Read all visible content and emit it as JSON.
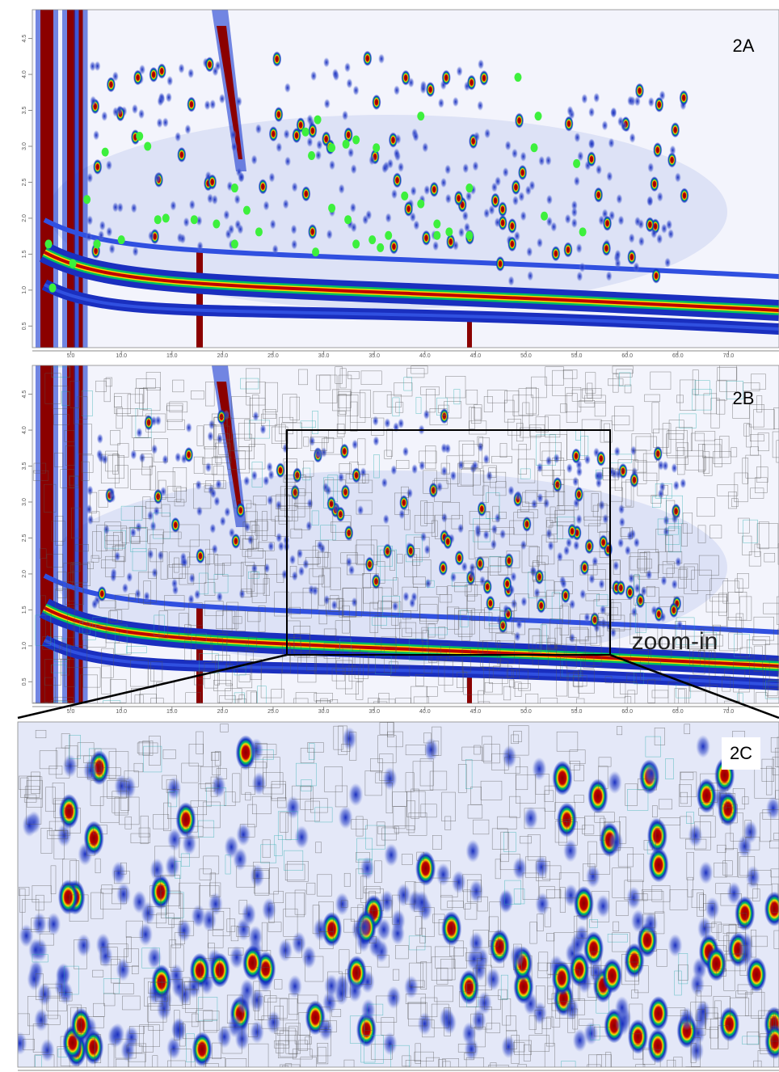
{
  "chart_data": [
    {
      "type": "scatter",
      "title": "2A",
      "xlim": [
        1.2,
        75
      ],
      "ylim": [
        0.2,
        4.9
      ],
      "xticks": [
        {
          "value": 5,
          "label": "5.0"
        },
        {
          "value": 10,
          "label": "10.0"
        },
        {
          "value": 15,
          "label": "15.0"
        },
        {
          "value": 20,
          "label": "20.0"
        },
        {
          "value": 25,
          "label": "25.0"
        },
        {
          "value": 30,
          "label": "30.0"
        },
        {
          "value": 35,
          "label": "35.0"
        },
        {
          "value": 40,
          "label": "40.0"
        },
        {
          "value": 45,
          "label": "45.0"
        },
        {
          "value": 50,
          "label": "50.0"
        },
        {
          "value": 55,
          "label": "55.0"
        },
        {
          "value": 60,
          "label": "60.0"
        },
        {
          "value": 65,
          "label": "65.0"
        },
        {
          "value": 70,
          "label": "70.0"
        }
      ],
      "yticks": [
        0.5,
        {
          "value": 1,
          "label": "1.0"
        },
        1.5,
        {
          "value": 2,
          "label": "2.0"
        },
        2.5,
        {
          "value": 3,
          "label": "3.0"
        },
        3.5,
        {
          "value": 4,
          "label": "4.0"
        },
        4.5
      ],
      "color": "#3df03d",
      "x": [
        8.4,
        11.8,
        12.6,
        6.6,
        13.6,
        14.4,
        17.2,
        19.4,
        21.2,
        21.2,
        22.4,
        23.6,
        28.2,
        29.4,
        28.8,
        30.8,
        32.2,
        33.2,
        35.2,
        30.8,
        32.4,
        33.2,
        34.8,
        36.4,
        38.0,
        39.6,
        39.6,
        41.2,
        42.4,
        44.4,
        44.4,
        49.2,
        50.8,
        51.2,
        51.8,
        55.0,
        55.6,
        2.8,
        3.2,
        5.2,
        7.6,
        10.0,
        29.2,
        35.6,
        41.2
      ],
      "y": [
        2.92,
        3.14,
        3.0,
        2.26,
        1.98,
        2.0,
        1.98,
        1.92,
        2.42,
        1.64,
        2.11,
        1.81,
        3.2,
        3.37,
        2.87,
        2.98,
        3.03,
        3.09,
        2.98,
        2.14,
        1.98,
        1.64,
        1.7,
        1.76,
        2.31,
        2.2,
        3.42,
        1.76,
        1.81,
        2.42,
        1.76,
        3.96,
        2.98,
        3.42,
        2.03,
        2.76,
        1.81,
        1.64,
        1.03,
        1.37,
        1.64,
        1.7,
        1.53,
        1.59,
        1.92
      ]
    },
    {
      "type": "heatmap",
      "title": "2B",
      "annotation": "zoom-in",
      "xlim": [
        1.2,
        75
      ],
      "ylim": [
        0.2,
        4.9
      ],
      "xticks": [
        {
          "value": 5,
          "label": "5.0"
        },
        {
          "value": 10,
          "label": "10.0"
        },
        {
          "value": 15,
          "label": "15.0"
        },
        {
          "value": 20,
          "label": "20.0"
        },
        {
          "value": 25,
          "label": "25.0"
        },
        {
          "value": 30,
          "label": "30.0"
        },
        {
          "value": 35,
          "label": "35.0"
        },
        {
          "value": 40,
          "label": "40.0"
        },
        {
          "value": 45,
          "label": "45.0"
        },
        {
          "value": 50,
          "label": "50.0"
        },
        {
          "value": 55,
          "label": "55.0"
        },
        {
          "value": 60,
          "label": "60.0"
        },
        {
          "value": 65,
          "label": "65.0"
        },
        {
          "value": 70,
          "label": "70.0"
        }
      ],
      "yticks": [
        0.5,
        {
          "value": 1,
          "label": "1.0"
        },
        1.5,
        {
          "value": 2,
          "label": "2.0"
        },
        2.5,
        {
          "value": 3,
          "label": "3.0"
        },
        3.5,
        {
          "value": 4,
          "label": "4.0"
        },
        4.5
      ]
    },
    {
      "type": "heatmap",
      "title": "2C"
    }
  ]
}
